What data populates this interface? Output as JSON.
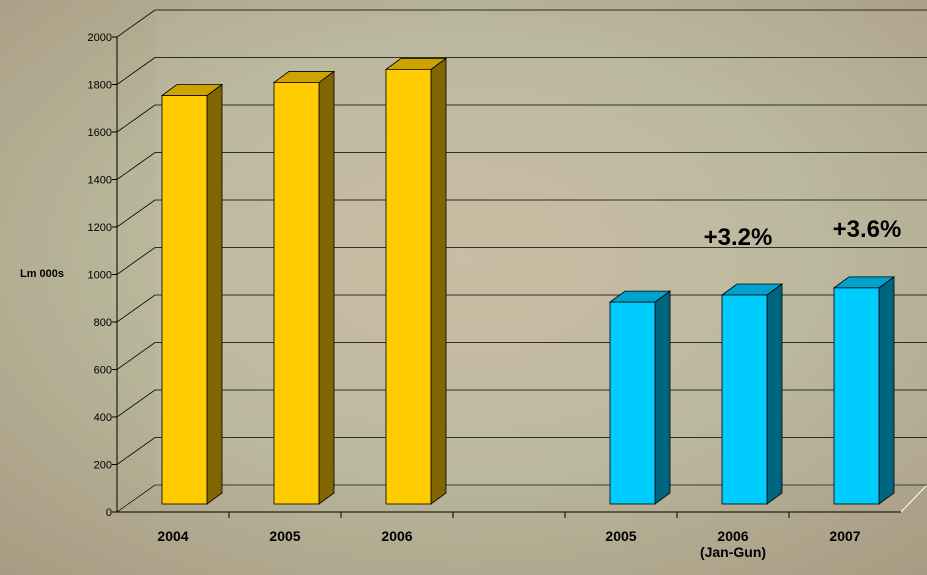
{
  "chart_data": {
    "type": "bar3d",
    "y_label": "Lm 000s",
    "categories": [
      "2004",
      "2005",
      "2006",
      null,
      "2005",
      "2006\n(Jan-Gun)",
      "2007"
    ],
    "values": [
      1720,
      1775,
      1830,
      null,
      850,
      880,
      910
    ],
    "colors": [
      "#ffcc00",
      "#ffcc00",
      "#ffcc00",
      null,
      "#00ccff",
      "#00ccff",
      "#00ccff"
    ],
    "ylim": [
      0,
      2000
    ],
    "yticks": [
      0,
      200,
      400,
      600,
      800,
      1000,
      1200,
      1400,
      1600,
      1800,
      2000
    ],
    "grid": true,
    "annotations": [
      "+3.2%",
      "+3.6%"
    ]
  }
}
